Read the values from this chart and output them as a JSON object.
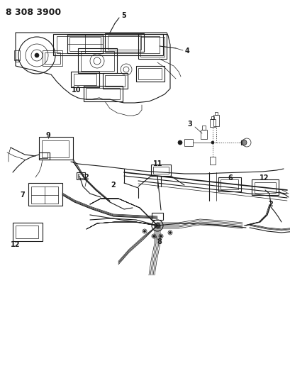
{
  "bg_color": "#ffffff",
  "line_color": "#1a1a1a",
  "title_text": "8 308 3900",
  "title_fontsize": 9,
  "title_fontweight": "bold",
  "fig_width": 4.1,
  "fig_height": 5.33,
  "dpi": 100,
  "label_fontsize": 7,
  "lw_thin": 0.5,
  "lw_med": 0.8,
  "lw_thick": 1.2
}
